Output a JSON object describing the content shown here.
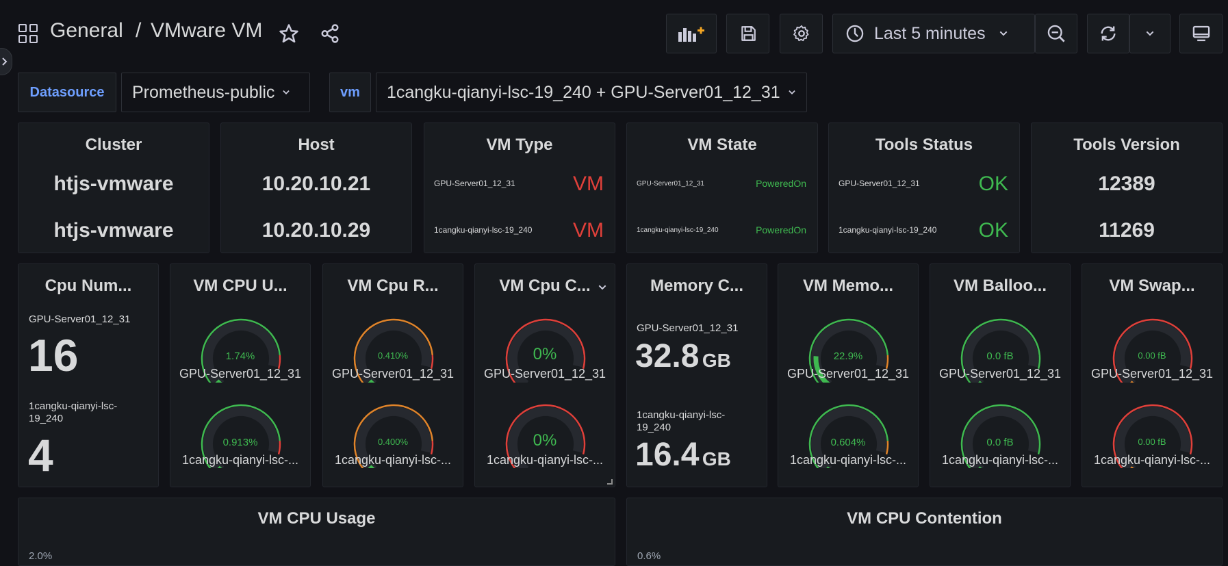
{
  "header": {
    "breadcrumb_folder": "General",
    "breadcrumb_separator": "/",
    "breadcrumb_dashboard": "VMware VM",
    "time_range": "Last 5 minutes"
  },
  "variables": {
    "datasource_label": "Datasource",
    "datasource_value": "Prometheus-public",
    "vm_label": "vm",
    "vm_value": "1cangku-qianyi-lsc-19_240 + GPU-Server01_12_31"
  },
  "row1": {
    "cluster": {
      "title": "Cluster",
      "values": [
        "htjs-vmware",
        "htjs-vmware"
      ]
    },
    "host": {
      "title": "Host",
      "values": [
        "10.20.10.21",
        "10.20.10.29"
      ]
    },
    "vm_type": {
      "title": "VM Type",
      "rows": [
        {
          "name": "GPU-Server01_12_31",
          "value": "VM"
        },
        {
          "name": "1cangku-qianyi-lsc-19_240",
          "value": "VM"
        }
      ]
    },
    "vm_state": {
      "title": "VM State",
      "rows": [
        {
          "name": "GPU-Server01_12_31",
          "value": "PoweredOn"
        },
        {
          "name": "1cangku-qianyi-lsc-19_240",
          "value": "PoweredOn"
        }
      ]
    },
    "tools_status": {
      "title": "Tools Status",
      "rows": [
        {
          "name": "GPU-Server01_12_31",
          "value": "OK"
        },
        {
          "name": "1cangku-qianyi-lsc-19_240",
          "value": "OK"
        }
      ]
    },
    "tools_version": {
      "title": "Tools Version",
      "values": [
        "12389",
        "11269"
      ]
    }
  },
  "row2": {
    "cpu_num": {
      "title": "Cpu Num...",
      "a_name": "GPU-Server01_12_31",
      "a_value": "16",
      "b_name_1": "1cangku-qianyi-lsc-",
      "b_name_2": "19_240",
      "b_value": "4"
    },
    "memory_c": {
      "title": "Memory C...",
      "a_name": "GPU-Server01_12_31",
      "a_value": "32.8",
      "a_unit": "GB",
      "b_name_1": "1cangku-qianyi-lsc-",
      "b_name_2": "19_240",
      "b_value": "16.4",
      "b_unit": "GB"
    },
    "gauges": [
      {
        "title": "VM CPU U...",
        "a_label": "GPU-Server01_12_31",
        "a_value": "1.74%",
        "a_frac": 0.04,
        "b_label": "1cangku-qianyi-lsc-...",
        "b_value": "0.913%",
        "b_frac": 0.03,
        "color": "#3fb950",
        "end": "#e0403a"
      },
      {
        "title": "VM Cpu R...",
        "a_label": "GPU-Server01_12_31",
        "a_value": "0.410%",
        "a_frac": 0.04,
        "b_label": "1cangku-qianyi-lsc-...",
        "b_value": "0.400%",
        "b_frac": 0.04,
        "color": "#e0842a",
        "end": "#e0403a"
      },
      {
        "title": "VM Cpu C...",
        "a_label": "GPU-Server01_12_31",
        "a_value": "0%",
        "a_frac": 0.0,
        "b_label": "1cangku-qianyi-lsc-...",
        "b_value": "0%",
        "b_frac": 0.0,
        "color": "#e0403a",
        "end": "#e0403a"
      },
      {
        "title": "VM Memo...",
        "a_label": "GPU-Server01_12_31",
        "a_value": "22.9%",
        "a_frac": 0.229,
        "b_label": "1cangku-qianyi-lsc-...",
        "b_value": "0.604%",
        "b_frac": 0.02,
        "color": "#3fb950",
        "end": "#e0842a"
      },
      {
        "title": "VM Balloo...",
        "a_label": "GPU-Server01_12_31",
        "a_value": "0.0 fB",
        "a_frac": 0.0,
        "b_label": "1cangku-qianyi-lsc-...",
        "b_value": "0.0 fB",
        "b_frac": 0.0,
        "color": "#3fb950",
        "end": "#3fb950"
      },
      {
        "title": "VM Swap...",
        "a_label": "GPU-Server01_12_31",
        "a_value": "0.00 fB",
        "a_frac": 0.0,
        "b_label": "1cangku-qianyi-lsc-...",
        "b_value": "0.00 fB",
        "b_frac": 0.0,
        "color": "#e0403a",
        "end": "#e0403a"
      }
    ]
  },
  "row3": {
    "cpu_usage": {
      "title": "VM CPU Usage",
      "first_tick": "2.0%"
    },
    "cpu_contention": {
      "title": "VM CPU Contention",
      "first_tick": "0.6%"
    }
  }
}
